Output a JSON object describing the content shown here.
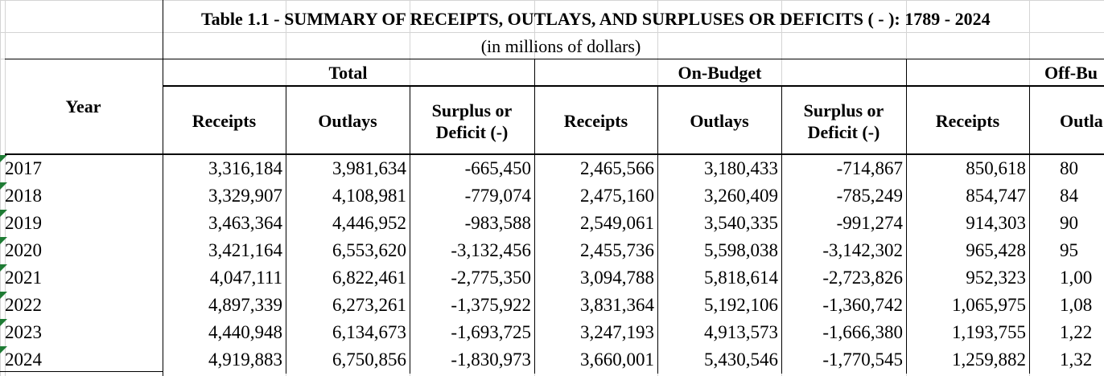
{
  "table": {
    "title": "Table 1.1 - SUMMARY OF RECEIPTS, OUTLAYS, AND SURPLUSES OR DEFICITS ( - ):  1789 - 2024",
    "subtitle": "(in millions of dollars)",
    "year_header": "Year",
    "groups": [
      "Total",
      "On-Budget",
      "Off-Bu"
    ],
    "col_headers": [
      [
        "Receipts"
      ],
      [
        "Outlays"
      ],
      [
        "Surplus or",
        "Deficit (-)"
      ],
      [
        "Receipts"
      ],
      [
        "Outlays"
      ],
      [
        "Surplus or",
        "Deficit (-)"
      ],
      [
        "Receipts"
      ],
      [
        "Outla"
      ]
    ],
    "rows": [
      {
        "year": "2017",
        "cells": [
          "3,316,184",
          "3,981,634",
          "-665,450",
          "2,465,566",
          "3,180,433",
          "-714,867",
          "850,618",
          "80"
        ]
      },
      {
        "year": "2018",
        "cells": [
          "3,329,907",
          "4,108,981",
          "-779,074",
          "2,475,160",
          "3,260,409",
          "-785,249",
          "854,747",
          "84"
        ]
      },
      {
        "year": "2019",
        "cells": [
          "3,463,364",
          "4,446,952",
          "-983,588",
          "2,549,061",
          "3,540,335",
          "-991,274",
          "914,303",
          "90"
        ]
      },
      {
        "year": "2020",
        "cells": [
          "3,421,164",
          "6,553,620",
          "-3,132,456",
          "2,455,736",
          "5,598,038",
          "-3,142,302",
          "965,428",
          "95"
        ]
      },
      {
        "year": "2021",
        "cells": [
          "4,047,111",
          "6,822,461",
          "-2,775,350",
          "3,094,788",
          "5,818,614",
          "-2,723,826",
          "952,323",
          "1,00"
        ]
      },
      {
        "year": "2022",
        "cells": [
          "4,897,339",
          "6,273,261",
          "-1,375,922",
          "3,831,364",
          "5,192,106",
          "-1,360,742",
          "1,065,975",
          "1,08"
        ]
      },
      {
        "year": "2023",
        "cells": [
          "4,440,948",
          "6,134,673",
          "-1,693,725",
          "3,247,193",
          "4,913,573",
          "-1,666,380",
          "1,193,755",
          "1,22"
        ]
      },
      {
        "year": "2024",
        "cells": [
          "4,919,883",
          "6,750,856",
          "-1,830,973",
          "3,660,001",
          "5,430,546",
          "-1,770,545",
          "1,259,882",
          "1,32"
        ]
      }
    ],
    "accent_color": "#1e7b34",
    "gridline_color": "#d4d4d4"
  }
}
